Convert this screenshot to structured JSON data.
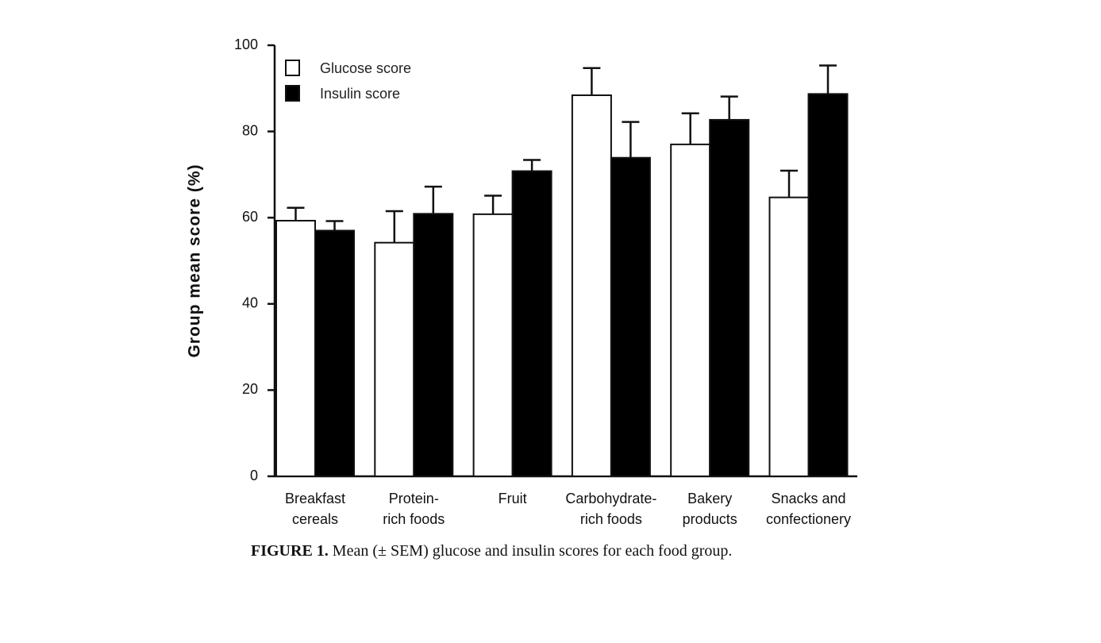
{
  "chart_data": {
    "type": "bar",
    "title": "",
    "xlabel": "",
    "ylabel": "Group mean score (%)",
    "ylim": [
      0,
      100
    ],
    "yticks": [
      0,
      20,
      40,
      60,
      80,
      100
    ],
    "categories": [
      [
        "Breakfast",
        "cereals"
      ],
      [
        "Protein-",
        "rich foods"
      ],
      [
        "Fruit"
      ],
      [
        "Carbohydrate-",
        "rich foods"
      ],
      [
        "Bakery",
        "products"
      ],
      [
        "Snacks and",
        "confectionery"
      ]
    ],
    "series": [
      {
        "name": "Glucose score",
        "fill": "#ffffff",
        "values": [
          59.3,
          54.2,
          60.8,
          88.4,
          77.0,
          64.7
        ],
        "sem": [
          3.0,
          7.3,
          4.3,
          6.3,
          7.2,
          6.2
        ]
      },
      {
        "name": "Insulin score",
        "fill": "#000000",
        "values": [
          57.0,
          60.9,
          70.8,
          73.9,
          82.7,
          88.7
        ],
        "sem": [
          2.2,
          6.3,
          2.6,
          8.3,
          5.4,
          6.6
        ]
      }
    ],
    "legend_position": "top-left",
    "grid": false,
    "error_bars": "SEM"
  },
  "caption": {
    "label": "FIGURE 1.",
    "text": " Mean (± SEM) glucose and insulin scores for each food group."
  }
}
